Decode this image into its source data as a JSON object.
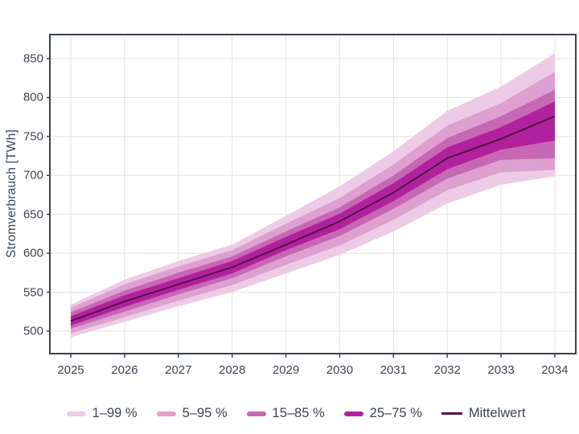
{
  "colors": {
    "background": "#ffffff",
    "text": "#3d4754",
    "plot_border": "#3a424e",
    "gridline": "#e2e2e2",
    "band_1_99": "#edcbe7",
    "band_5_95": "#dea0d1",
    "band_15_85": "#c768b5",
    "band_25_75": "#b1219e",
    "mean_line": "#531048"
  },
  "chart_data": {
    "type": "area",
    "subtype": "fan-chart",
    "title": "",
    "xlabel": "",
    "ylabel": "Stromverbrauch [TWh]",
    "x": [
      2025,
      2026,
      2027,
      2028,
      2029,
      2030,
      2031,
      2032,
      2033,
      2034
    ],
    "xticklabels": [
      "2025",
      "2026",
      "2027",
      "2028",
      "2029",
      "2030",
      "2031",
      "2032",
      "2033",
      "2034"
    ],
    "yticks": [
      500,
      550,
      600,
      650,
      700,
      750,
      800,
      850
    ],
    "xlim": [
      2024.61,
      2034.39
    ],
    "ylim": [
      471,
      881
    ],
    "grid": true,
    "legend_position": "bottom",
    "series": [
      {
        "name": "Mittelwert",
        "color": "#531048",
        "values": [
          513,
          538,
          560,
          582,
          611,
          641,
          678,
          722,
          747,
          776
        ]
      }
    ],
    "bands": [
      {
        "name": "1–99 %",
        "color": "#edcbe7",
        "lower": [
          492,
          512,
          532,
          550,
          574,
          598,
          628,
          664,
          688,
          699
        ],
        "upper": [
          534,
          566,
          590,
          611,
          648,
          686,
          731,
          783,
          814,
          857
        ]
      },
      {
        "name": "5–95 %",
        "color": "#dea0d1",
        "lower": [
          497,
          518,
          539,
          559,
          585,
          610,
          643,
          681,
          704,
          707
        ],
        "upper": [
          530,
          560,
          583,
          604,
          638,
          671,
          714,
          764,
          793,
          833
        ]
      },
      {
        "name": "15–85 %",
        "color": "#c768b5",
        "lower": [
          503,
          525,
          547,
          568,
          596,
          622,
          657,
          696,
          720,
          722
        ],
        "upper": [
          524,
          552,
          575,
          596,
          628,
          659,
          700,
          748,
          776,
          810
        ]
      },
      {
        "name": "25–75 %",
        "color": "#b1219e",
        "lower": [
          507,
          531,
          553,
          574,
          604,
          631,
          667,
          708,
          733,
          745
        ],
        "upper": [
          519,
          546,
          568,
          590,
          621,
          651,
          690,
          736,
          762,
          795
        ]
      }
    ],
    "legend": [
      {
        "label": "1–99 %",
        "color": "#edcbe7",
        "type": "band"
      },
      {
        "label": "5–95 %",
        "color": "#dea0d1",
        "type": "band"
      },
      {
        "label": "15–85 %",
        "color": "#c768b5",
        "type": "band"
      },
      {
        "label": "25–75 %",
        "color": "#b1219e",
        "type": "band"
      },
      {
        "label": "Mittelwert",
        "color": "#531048",
        "type": "line"
      }
    ]
  }
}
